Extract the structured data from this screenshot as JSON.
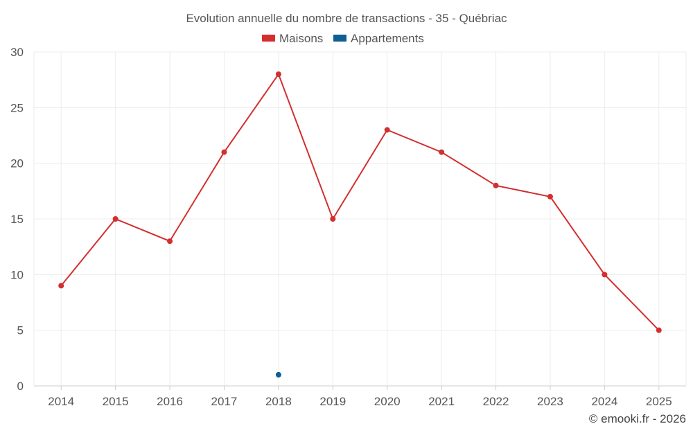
{
  "chart_data": {
    "type": "line",
    "title": "Evolution annuelle du nombre de transactions - 35 - Québriac",
    "xlabel": "",
    "ylabel": "",
    "categories": [
      "2014",
      "2015",
      "2016",
      "2017",
      "2018",
      "2019",
      "2020",
      "2021",
      "2022",
      "2023",
      "2024",
      "2025"
    ],
    "ylim": [
      0,
      30
    ],
    "yticks": [
      "0",
      "5",
      "10",
      "15",
      "20",
      "25",
      "30"
    ],
    "grid": true,
    "legend_position": "top-center",
    "series": [
      {
        "name": "Maisons",
        "color": "#d32f2f",
        "values": [
          9,
          15,
          13,
          21,
          28,
          15,
          23,
          21,
          18,
          17,
          10,
          5
        ]
      },
      {
        "name": "Appartements",
        "color": "#0d5f94",
        "values": [
          null,
          null,
          null,
          null,
          1,
          null,
          null,
          null,
          null,
          null,
          null,
          null
        ]
      }
    ]
  },
  "credit": "© emooki.fr - 2026"
}
